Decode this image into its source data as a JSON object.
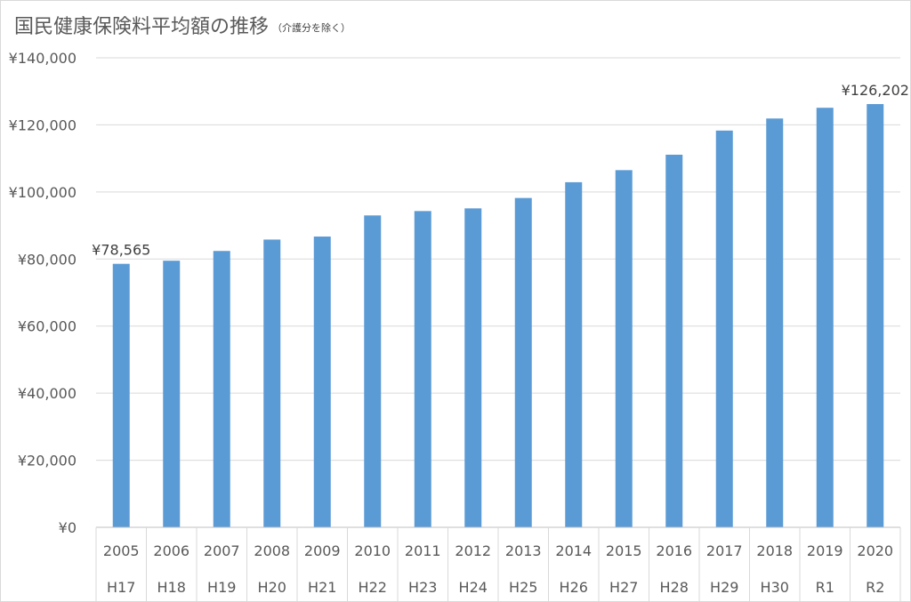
{
  "chart_data": {
    "type": "bar",
    "title": "国民健康保険料平均額の推移",
    "subtitle": "（介護分を除く）",
    "categories": [
      "2005",
      "2006",
      "2007",
      "2008",
      "2009",
      "2010",
      "2011",
      "2012",
      "2013",
      "2014",
      "2015",
      "2016",
      "2017",
      "2018",
      "2019",
      "2020"
    ],
    "categories_secondary": [
      "H17",
      "H18",
      "H19",
      "H20",
      "H21",
      "H22",
      "H23",
      "H24",
      "H25",
      "H26",
      "H27",
      "H28",
      "H29",
      "H30",
      "R1",
      "R2"
    ],
    "values": [
      78565,
      79500,
      82400,
      85800,
      86700,
      93000,
      94300,
      95100,
      98200,
      102900,
      106500,
      111100,
      118300,
      121900,
      125100,
      126202
    ],
    "ylim": [
      0,
      140000
    ],
    "yticks": [
      0,
      20000,
      40000,
      60000,
      80000,
      100000,
      120000,
      140000
    ],
    "ytick_labels": [
      "¥0",
      "¥20,000",
      "¥40,000",
      "¥60,000",
      "¥80,000",
      "¥100,000",
      "¥120,000",
      "¥140,000"
    ],
    "data_labels": [
      {
        "index": 0,
        "text": "¥78,565"
      },
      {
        "index": 15,
        "text": "¥126,202"
      }
    ],
    "bar_color": "#5B9BD5",
    "grid": true,
    "legend": "none"
  }
}
